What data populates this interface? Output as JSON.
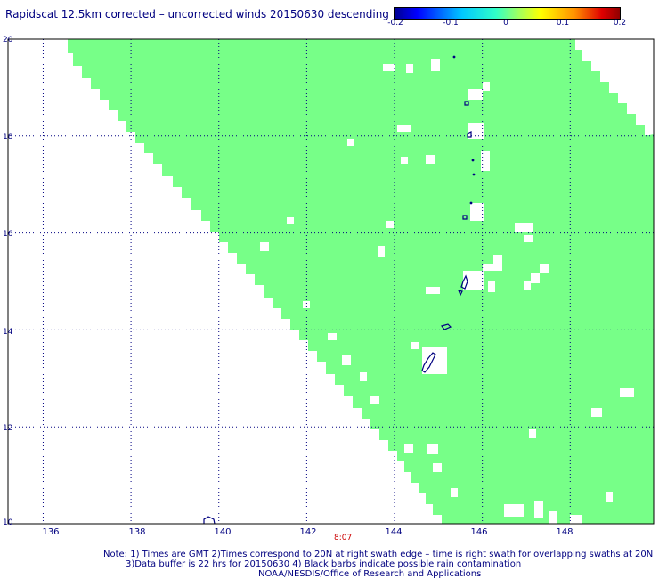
{
  "title": "Rapidscat 12.5km corrected – uncorrected winds 20150630 descending",
  "colorbar": {
    "ticks": [
      "-0.2",
      "-0.1",
      "0",
      "0.1",
      "0.2"
    ],
    "colors": [
      "#000090",
      "#0000ff",
      "#00c8ff",
      "#30ffc8",
      "#a0ff60",
      "#ffff00",
      "#ff9000",
      "#e00000",
      "#900000"
    ]
  },
  "map": {
    "lat_labels": [
      "20",
      "18",
      "16",
      "14",
      "12",
      "10"
    ],
    "lon_labels": [
      "136",
      "138",
      "140",
      "142",
      "144",
      "146",
      "148"
    ],
    "lat_range": [
      10,
      20
    ],
    "lon_range": [
      135.2,
      149.9
    ],
    "swath_color": "#77ff88",
    "coast_color": "#000080",
    "gridline_color": "#000080"
  },
  "time_label": "8:07",
  "notes": {
    "line1": "Note: 1) Times are GMT 2)Times correspond to 20N at right swath edge – time is right swath for overlapping swaths at 20N",
    "line2": "3)Data buffer is 22 hrs for 20150630 4) Black barbs indicate possible rain contamination",
    "line3": "NOAA/NESDIS/Office of Research and Applications"
  }
}
